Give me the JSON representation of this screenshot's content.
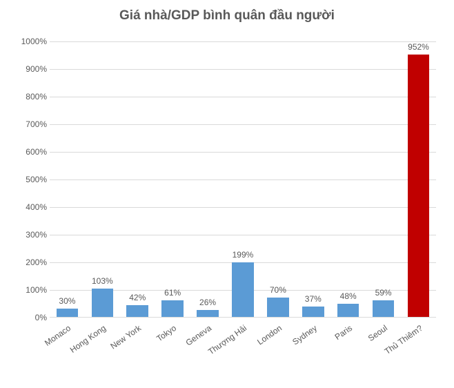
{
  "chart": {
    "type": "bar",
    "title": "Giá nhà/GDP bình quân đầu người",
    "title_fontsize": 19,
    "title_color": "#595959",
    "background_color": "#ffffff",
    "grid_color": "#d9d9d9",
    "axis_font_color": "#595959",
    "tick_fontsize": 12,
    "data_label_fontsize": 12,
    "xlabel_fontsize": 12,
    "xlabel_rotation_deg": -35,
    "ylim": [
      0,
      1000
    ],
    "ytick_step": 100,
    "yticks": [
      "0%",
      "100%",
      "200%",
      "300%",
      "400%",
      "500%",
      "600%",
      "700%",
      "800%",
      "900%",
      "1000%"
    ],
    "bar_width_ratio": 0.62,
    "bars": [
      {
        "category": "Monaco",
        "value": 30,
        "label": "30%",
        "color": "#5b9bd5"
      },
      {
        "category": "Hong Kong",
        "value": 103,
        "label": "103%",
        "color": "#5b9bd5"
      },
      {
        "category": "New York",
        "value": 42,
        "label": "42%",
        "color": "#5b9bd5"
      },
      {
        "category": "Tokyo",
        "value": 61,
        "label": "61%",
        "color": "#5b9bd5"
      },
      {
        "category": "Geneva",
        "value": 26,
        "label": "26%",
        "color": "#5b9bd5"
      },
      {
        "category": "Thượng Hải",
        "value": 199,
        "label": "199%",
        "color": "#5b9bd5"
      },
      {
        "category": "London",
        "value": 70,
        "label": "70%",
        "color": "#5b9bd5"
      },
      {
        "category": "Sydney",
        "value": 37,
        "label": "37%",
        "color": "#5b9bd5"
      },
      {
        "category": "Paris",
        "value": 48,
        "label": "48%",
        "color": "#5b9bd5"
      },
      {
        "category": "Seoul",
        "value": 59,
        "label": "59%",
        "color": "#5b9bd5"
      },
      {
        "category": "Thủ Thiêm?",
        "value": 952,
        "label": "952%",
        "color": "#c00000"
      }
    ]
  }
}
